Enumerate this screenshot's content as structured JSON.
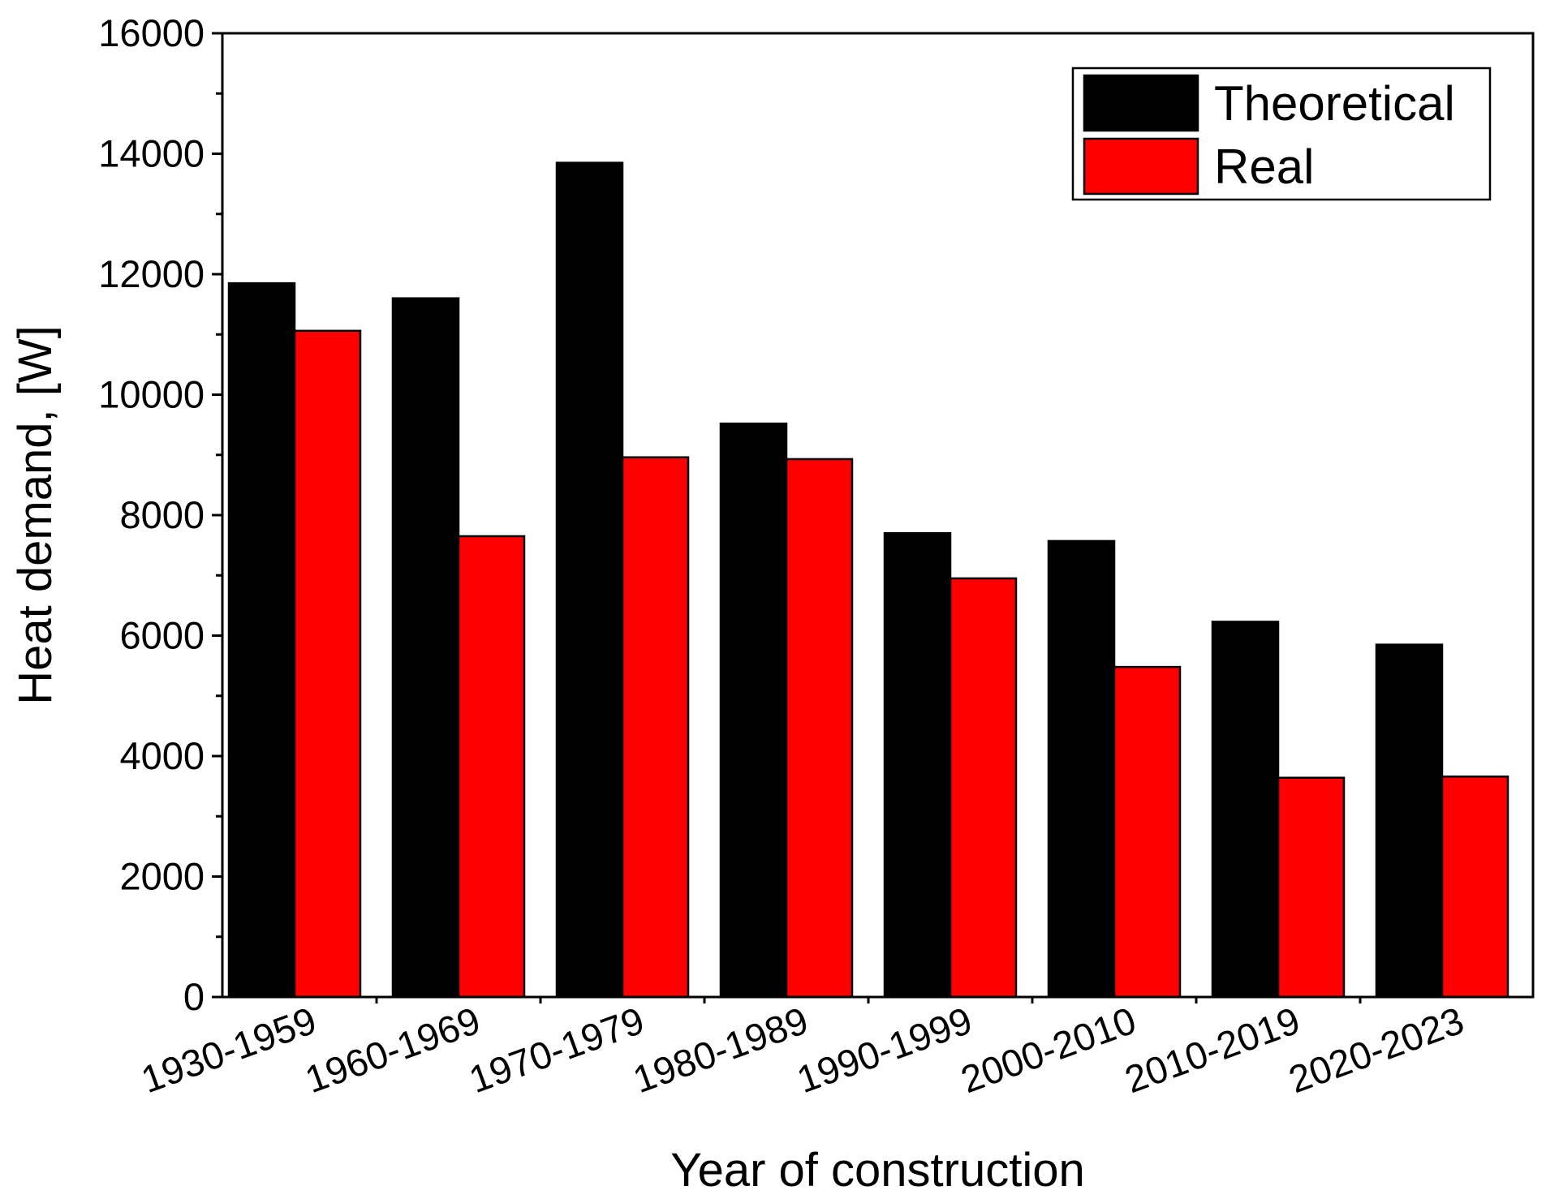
{
  "chart_data": {
    "type": "bar",
    "title": "",
    "xlabel": "Year of construction",
    "ylabel": "Heat demand, [W]",
    "ylim": [
      0,
      16000
    ],
    "yticks": [
      0,
      2000,
      4000,
      6000,
      8000,
      10000,
      12000,
      14000,
      16000
    ],
    "ytick_labels": [
      "0",
      "2000",
      "4000",
      "6000",
      "8000",
      "10000",
      "12000",
      "14000",
      "16000"
    ],
    "categories": [
      "1930-1959",
      "1960-1969",
      "1970-1979",
      "1980-1989",
      "1990-1999",
      "2000-2010",
      "2010-2019",
      "2020-2023"
    ],
    "series": [
      {
        "name": "Theoretical",
        "color": "#000000",
        "values": [
          11850,
          11600,
          13850,
          9520,
          7700,
          7570,
          6230,
          5850
        ]
      },
      {
        "name": "Real",
        "color": "#ff0000",
        "values": [
          11060,
          7650,
          8960,
          8930,
          6950,
          5480,
          3640,
          3660
        ]
      }
    ],
    "legend": {
      "position": "top-right"
    },
    "grid": false
  }
}
